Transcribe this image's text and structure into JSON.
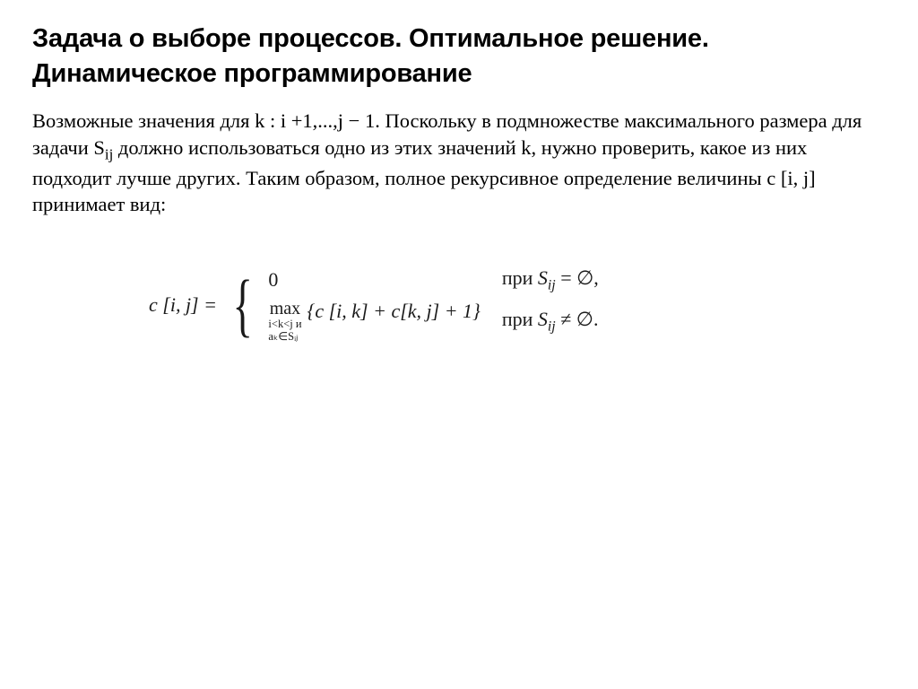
{
  "colors": {
    "bg": "#ffffff",
    "text": "#000000",
    "formula": "#1a1a1a"
  },
  "typography": {
    "heading_family": "Arial",
    "heading_size_pt": 22,
    "heading_weight": 700,
    "body_family": "Times New Roman",
    "body_size_pt": 17,
    "formula_size_pt": 17
  },
  "heading": "Задача о выборе процессов. Оптимальное решение. Динамическое программирование",
  "paragraph": {
    "t1": "Возможные значения для k : i +1,...,j − 1. Поскольку в подмножестве максимального размера для задачи S",
    "sub1": "ij",
    "t2": " должно использоваться одно из этих значений k, нужно проверить, какое из них подходит лучше других. Таким образом, полное рекурсивное определение величины c [i, j] принимает вид:"
  },
  "formula": {
    "lhs": "c [i, j] =",
    "brace": "{",
    "case1": {
      "expr": "0",
      "cond_prefix": "при ",
      "cond_var": "S",
      "cond_sub": "ij",
      "cond_rhs": " = ∅,"
    },
    "case2": {
      "max_word": "max",
      "max_sub_line1": "i<k<j и",
      "max_sub_line2": "aₖ∈Sᵢⱼ",
      "set": "{c [i, k] + c[k, j] + 1}",
      "cond_prefix": "при ",
      "cond_var": "S",
      "cond_sub": "ij",
      "cond_rhs": " ≠ ∅."
    }
  }
}
